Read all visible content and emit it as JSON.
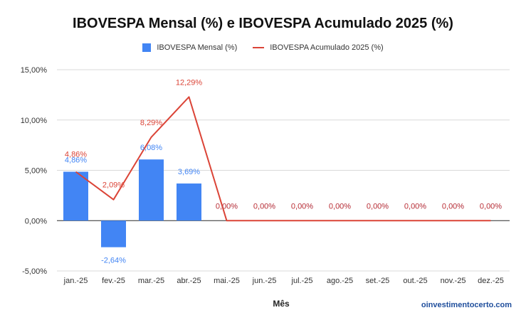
{
  "watermark": "oinvestimentocerto.com",
  "chart_data": {
    "type": "bar",
    "title": "IBOVESPA Mensal (%) e IBOVESPA Acumulado 2025 (%)",
    "xlabel": "Mês",
    "ylabel": "",
    "categories": [
      "jan.-25",
      "fev.-25",
      "mar.-25",
      "abr.-25",
      "mai.-25",
      "jun.-25",
      "jul.-25",
      "ago.-25",
      "set.-25",
      "out.-25",
      "nov.-25",
      "dez.-25"
    ],
    "y_ticks": [
      "15,00%",
      "10,00%",
      "5,00%",
      "0,00%",
      "-5,00%"
    ],
    "ylim": [
      -5,
      15
    ],
    "grid": true,
    "legend_position": "top",
    "series": [
      {
        "name": "IBOVESPA Mensal (%)",
        "type": "bar",
        "color": "#4285f4",
        "values": [
          4.86,
          -2.64,
          6.08,
          3.69,
          0,
          0,
          0,
          0,
          0,
          0,
          0,
          0
        ],
        "labels": [
          "4,86%",
          "-2,64%",
          "6,08%",
          "3,69%",
          "0,00%",
          "0,00%",
          "0,00%",
          "0,00%",
          "0,00%",
          "0,00%",
          "0,00%",
          "0,00%"
        ]
      },
      {
        "name": "IBOVESPA Acumulado 2025 (%)",
        "type": "line",
        "color": "#db4437",
        "values": [
          4.86,
          2.09,
          8.29,
          12.29,
          0,
          0,
          0,
          0,
          0,
          0,
          0,
          0
        ],
        "labels": [
          "4,86%",
          "2,09%",
          "8,29%",
          "12,29%",
          "0,00%",
          "0,00%",
          "0,00%",
          "0,00%",
          "0,00%",
          "0,00%",
          "0,00%",
          "0,00%"
        ]
      }
    ]
  }
}
